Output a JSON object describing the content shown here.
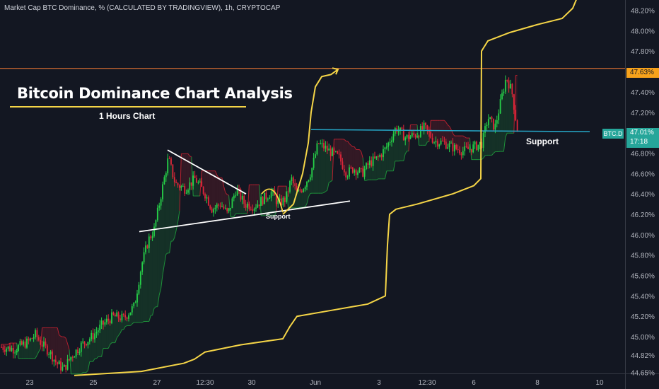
{
  "header": {
    "title": "Market Cap BTC Dominance, % (CALCULATED BY TRADINGVIEW), 1h, CRYPTOCAP"
  },
  "annotations": {
    "title": "Bitcoin Dominance Chart Analysis",
    "subtitle": "1 Hours Chart",
    "support_right": "Support",
    "support_left": "Support"
  },
  "price_tags": {
    "level": "47.63%",
    "symbol": "BTC.D",
    "last": "47.01%",
    "countdown": "17:18"
  },
  "colors": {
    "background": "#131722",
    "up": "#26d148",
    "down": "#e0263a",
    "projection": "#f5d547",
    "resistance": "#f57c34",
    "support": "#26a9c9",
    "trendline": "#ffffff"
  },
  "chart_data": {
    "type": "candlestick",
    "y_unit": "%",
    "ylim": [
      44.64,
      48.28
    ],
    "y_ticks": [
      "48.20%",
      "48.00%",
      "47.80%",
      "47.63%",
      "47.40%",
      "47.20%",
      "47.01%",
      "46.80%",
      "46.60%",
      "46.40%",
      "46.20%",
      "46.00%",
      "45.80%",
      "45.60%",
      "45.40%",
      "45.20%",
      "45.00%",
      "44.82%",
      "44.65%"
    ],
    "x_ticks": [
      "23",
      "25",
      "27",
      "12:30",
      "30",
      "Jun",
      "3",
      "12:30",
      "6",
      "8",
      "10"
    ],
    "resistance_level": 47.63,
    "support_level": 47.01,
    "last_price": 47.01,
    "close_path": [
      [
        0,
        44.9
      ],
      [
        20,
        44.88
      ],
      [
        40,
        44.95
      ],
      [
        50,
        45.02
      ],
      [
        60,
        44.92
      ],
      [
        70,
        44.85
      ],
      [
        80,
        44.74
      ],
      [
        90,
        44.68
      ],
      [
        100,
        44.8
      ],
      [
        115,
        44.92
      ],
      [
        130,
        45.0
      ],
      [
        145,
        45.12
      ],
      [
        160,
        45.2
      ],
      [
        175,
        45.18
      ],
      [
        190,
        45.3
      ],
      [
        200,
        45.7
      ],
      [
        210,
        45.95
      ],
      [
        218,
        46.05
      ],
      [
        228,
        46.4
      ],
      [
        238,
        46.75
      ],
      [
        248,
        46.5
      ],
      [
        262,
        46.45
      ],
      [
        276,
        46.55
      ],
      [
        290,
        46.4
      ],
      [
        300,
        46.25
      ],
      [
        312,
        46.3
      ],
      [
        322,
        46.2
      ],
      [
        334,
        46.45
      ],
      [
        346,
        46.3
      ],
      [
        360,
        46.28
      ],
      [
        372,
        46.35
      ],
      [
        384,
        46.42
      ],
      [
        394,
        46.3
      ],
      [
        404,
        46.35
      ],
      [
        412,
        46.55
      ],
      [
        420,
        46.4
      ],
      [
        430,
        46.48
      ],
      [
        440,
        46.62
      ],
      [
        450,
        46.9
      ],
      [
        460,
        46.85
      ],
      [
        470,
        46.8
      ],
      [
        480,
        46.75
      ],
      [
        490,
        46.6
      ],
      [
        500,
        46.65
      ],
      [
        512,
        46.6
      ],
      [
        522,
        46.7
      ],
      [
        534,
        46.75
      ],
      [
        546,
        46.85
      ],
      [
        560,
        47.05
      ],
      [
        574,
        46.95
      ],
      [
        588,
        46.98
      ],
      [
        600,
        47.05
      ],
      [
        614,
        46.92
      ],
      [
        628,
        46.9
      ],
      [
        642,
        46.85
      ],
      [
        656,
        46.82
      ],
      [
        670,
        46.86
      ],
      [
        682,
        46.9
      ],
      [
        690,
        47.15
      ],
      [
        700,
        47.05
      ],
      [
        708,
        47.3
      ],
      [
        716,
        47.55
      ],
      [
        724,
        47.4
      ],
      [
        732,
        47.01
      ]
    ],
    "projection_path": [
      [
        105,
        44.62
      ],
      [
        200,
        44.66
      ],
      [
        260,
        44.74
      ],
      [
        275,
        44.78
      ],
      [
        290,
        44.85
      ],
      [
        340,
        44.92
      ],
      [
        400,
        44.98
      ],
      [
        410,
        45.1
      ],
      [
        420,
        45.2
      ],
      [
        470,
        45.26
      ],
      [
        520,
        45.32
      ],
      [
        545,
        45.4
      ],
      [
        548,
        45.9
      ],
      [
        551,
        46.2
      ],
      [
        560,
        46.25
      ],
      [
        590,
        46.3
      ],
      [
        640,
        46.4
      ],
      [
        670,
        46.48
      ],
      [
        680,
        46.55
      ],
      [
        681,
        47.8
      ],
      [
        690,
        47.9
      ],
      [
        720,
        47.98
      ],
      [
        760,
        48.06
      ],
      [
        795,
        48.12
      ],
      [
        810,
        48.22
      ],
      [
        816,
        48.32
      ]
    ],
    "projection_path_2": [
      [
        400,
        46.2
      ],
      [
        415,
        46.3
      ],
      [
        428,
        46.6
      ],
      [
        436,
        46.9
      ],
      [
        440,
        47.2
      ],
      [
        446,
        47.45
      ],
      [
        455,
        47.55
      ],
      [
        468,
        47.57
      ],
      [
        478,
        47.62
      ]
    ],
    "trendlines": [
      {
        "from": [
          197,
          46.03
        ],
        "to": [
          495,
          46.33
        ]
      },
      {
        "from": [
          237,
          46.83
        ],
        "to": [
          348,
          46.4
        ]
      }
    ],
    "support_line": {
      "from": [
        440,
        47.03
      ],
      "to": [
        834,
        47.01
      ]
    }
  }
}
